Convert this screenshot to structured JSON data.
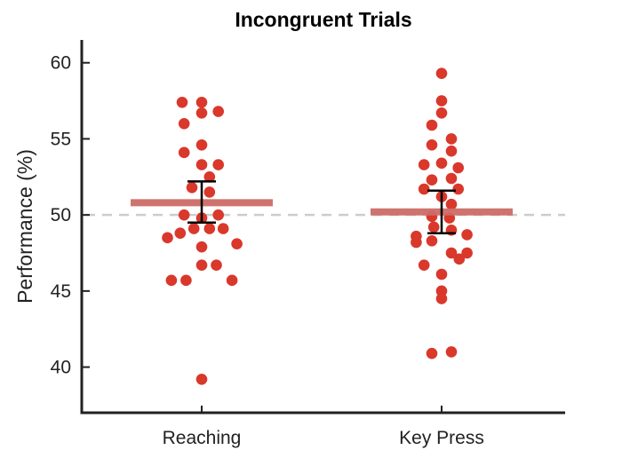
{
  "chart_data": {
    "type": "scatter",
    "title": "Incongruent Trials",
    "xlabel": "",
    "ylabel": "Performance (%)",
    "ylim": [
      37,
      61.5
    ],
    "yticks": [
      40,
      45,
      50,
      55,
      60
    ],
    "categories": [
      "Reaching",
      "Key Press"
    ],
    "reference_line": 50,
    "grid": false,
    "colors": {
      "points": "#d9382b",
      "mean": "#cc6b66",
      "error": "#000000",
      "reference": "#cccccc",
      "axis": "#222222"
    },
    "series": [
      {
        "category": "Reaching",
        "points": [
          {
            "x": -0.2,
            "y": 57.4
          },
          {
            "x": 0.0,
            "y": 57.4
          },
          {
            "x": -0.18,
            "y": 56.0
          },
          {
            "x": 0.0,
            "y": 56.7
          },
          {
            "x": 0.17,
            "y": 56.8
          },
          {
            "x": 0.0,
            "y": 54.6
          },
          {
            "x": -0.18,
            "y": 54.1
          },
          {
            "x": 0.0,
            "y": 53.3
          },
          {
            "x": 0.17,
            "y": 53.3
          },
          {
            "x": 0.08,
            "y": 52.5
          },
          {
            "x": -0.1,
            "y": 51.8
          },
          {
            "x": 0.08,
            "y": 51.5
          },
          {
            "x": -0.18,
            "y": 50.0
          },
          {
            "x": 0.17,
            "y": 50.0
          },
          {
            "x": 0.0,
            "y": 49.8
          },
          {
            "x": -0.08,
            "y": 49.1
          },
          {
            "x": 0.08,
            "y": 49.1
          },
          {
            "x": 0.22,
            "y": 49.1
          },
          {
            "x": -0.35,
            "y": 48.5
          },
          {
            "x": -0.22,
            "y": 48.8
          },
          {
            "x": 0.0,
            "y": 47.9
          },
          {
            "x": 0.36,
            "y": 48.1
          },
          {
            "x": -0.0,
            "y": 46.7
          },
          {
            "x": 0.15,
            "y": 46.7
          },
          {
            "x": -0.31,
            "y": 45.7
          },
          {
            "x": -0.16,
            "y": 45.7
          },
          {
            "x": 0.31,
            "y": 45.7
          },
          {
            "x": 0.0,
            "y": 39.2
          }
        ],
        "mean": 50.8,
        "error_low": 49.5,
        "error_high": 52.2
      },
      {
        "category": "Key Press",
        "points": [
          {
            "x": 0.0,
            "y": 59.3
          },
          {
            "x": 0.0,
            "y": 57.5
          },
          {
            "x": 0.0,
            "y": 56.7
          },
          {
            "x": -0.1,
            "y": 55.9
          },
          {
            "x": 0.1,
            "y": 55.0
          },
          {
            "x": -0.1,
            "y": 54.6
          },
          {
            "x": 0.1,
            "y": 54.2
          },
          {
            "x": -0.18,
            "y": 53.3
          },
          {
            "x": 0.0,
            "y": 53.4
          },
          {
            "x": 0.17,
            "y": 53.1
          },
          {
            "x": -0.1,
            "y": 52.3
          },
          {
            "x": 0.1,
            "y": 52.4
          },
          {
            "x": -0.18,
            "y": 51.7
          },
          {
            "x": 0.0,
            "y": 51.2
          },
          {
            "x": 0.17,
            "y": 51.7
          },
          {
            "x": 0.1,
            "y": 50.7
          },
          {
            "x": -0.1,
            "y": 49.9
          },
          {
            "x": 0.08,
            "y": 49.8
          },
          {
            "x": -0.08,
            "y": 49.2
          },
          {
            "x": 0.1,
            "y": 49.0
          },
          {
            "x": -0.26,
            "y": 48.6
          },
          {
            "x": -0.26,
            "y": 48.2
          },
          {
            "x": -0.1,
            "y": 48.3
          },
          {
            "x": 0.26,
            "y": 48.7
          },
          {
            "x": 0.1,
            "y": 47.5
          },
          {
            "x": 0.26,
            "y": 47.5
          },
          {
            "x": 0.18,
            "y": 47.1
          },
          {
            "x": -0.18,
            "y": 46.7
          },
          {
            "x": 0.0,
            "y": 46.1
          },
          {
            "x": 0.0,
            "y": 45.0
          },
          {
            "x": 0.0,
            "y": 44.5
          },
          {
            "x": -0.1,
            "y": 40.9
          },
          {
            "x": 0.1,
            "y": 41.0
          }
        ],
        "mean": 50.2,
        "error_low": 48.8,
        "error_high": 51.6
      }
    ]
  }
}
